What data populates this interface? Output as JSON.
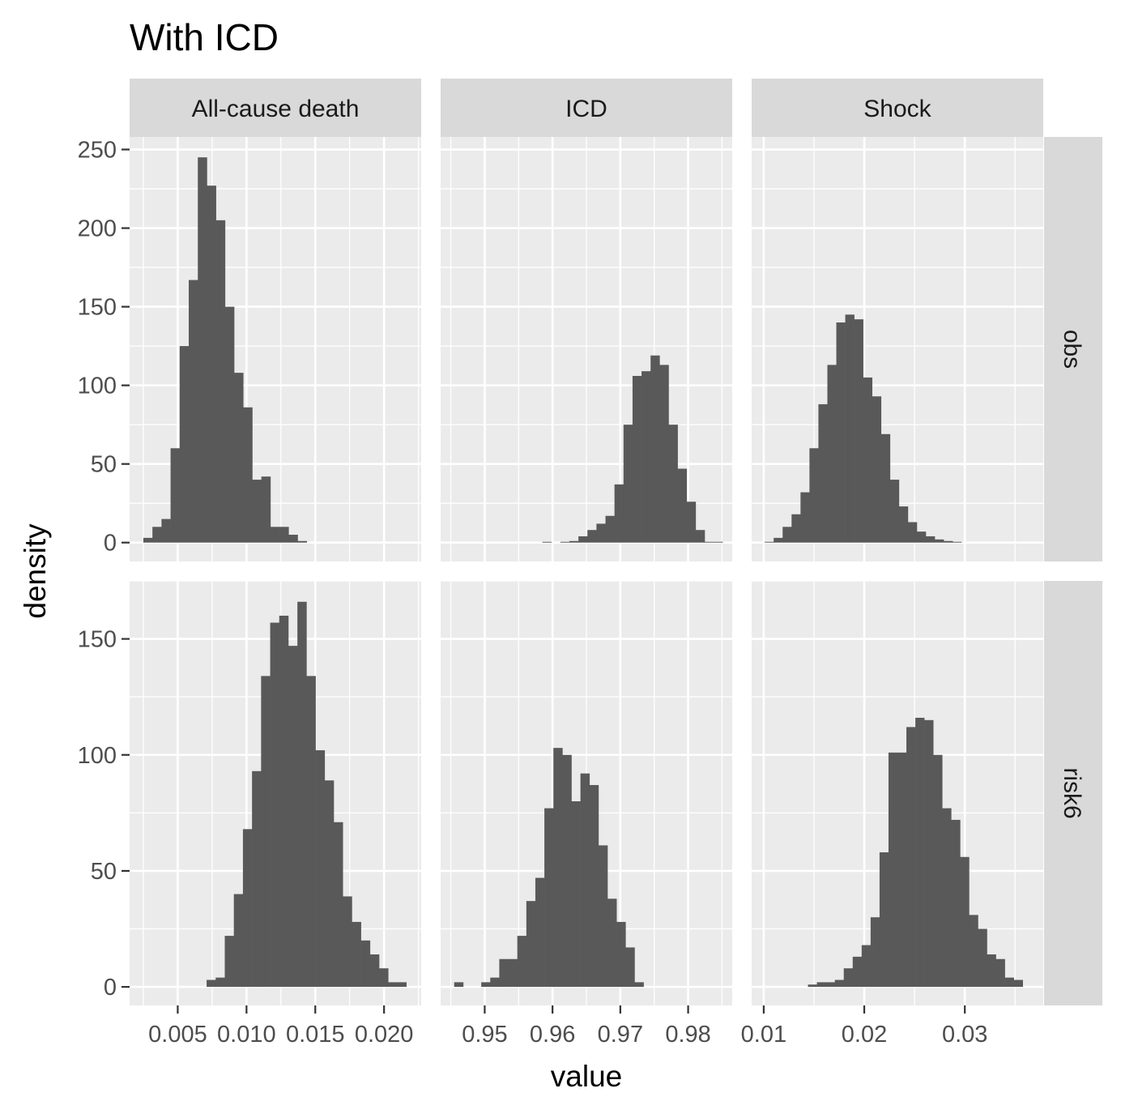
{
  "title": "With ICD",
  "xlabel": "value",
  "ylabel": "density",
  "colors": {
    "bar": "#595959",
    "panel": "#ebebeb",
    "grid": "#ffffff",
    "strip": "#d9d9d9",
    "tick": "#333333"
  },
  "chart_data": [
    {
      "type": "bar",
      "facet_col": "All-cause death",
      "facet_row": "obs",
      "xlim": [
        0.0015,
        0.0227
      ],
      "ylim": [
        -12,
        258
      ],
      "xticks": [
        0.005,
        0.01,
        0.015,
        0.02
      ],
      "xtick_labels": [
        "0.005",
        "0.010",
        "0.015",
        "0.020"
      ],
      "yticks": [
        0,
        50,
        100,
        150,
        200,
        250
      ],
      "ytick_labels": [
        "0",
        "50",
        "100",
        "150",
        "200",
        "250"
      ],
      "bin_start": 0.0025,
      "bin_width": 0.00066,
      "values": [
        3,
        10,
        15,
        60,
        125,
        167,
        245,
        227,
        205,
        150,
        108,
        86,
        40,
        42,
        10,
        10,
        5,
        1
      ]
    },
    {
      "type": "bar",
      "facet_col": "ICD",
      "facet_row": "obs",
      "xlim": [
        0.9435,
        0.9865
      ],
      "ylim": [
        -12,
        258
      ],
      "xticks": [
        0.95,
        0.96,
        0.97,
        0.98
      ],
      "xtick_labels": [
        "0.95",
        "0.96",
        "0.97",
        "0.98"
      ],
      "yticks": [
        0,
        50,
        100,
        150,
        200,
        250
      ],
      "bin_start": 0.9585,
      "bin_width": 0.00133,
      "values": [
        0.5,
        0,
        0.5,
        1,
        4,
        8,
        12,
        17,
        37,
        75,
        106,
        109,
        119,
        113,
        75,
        47,
        26,
        8,
        0.5,
        0.5
      ]
    },
    {
      "type": "bar",
      "facet_col": "Shock",
      "facet_row": "obs",
      "xlim": [
        0.0088,
        0.0378
      ],
      "ylim": [
        -12,
        258
      ],
      "xticks": [
        0.01,
        0.02,
        0.03
      ],
      "xtick_labels": [
        "0.01",
        "0.02",
        "0.03"
      ],
      "yticks": [
        0,
        50,
        100,
        150,
        200,
        250
      ],
      "bin_start": 0.0101,
      "bin_width": 0.00089,
      "values": [
        0.5,
        3,
        10,
        18,
        32,
        60,
        88,
        113,
        140,
        145,
        142,
        105,
        93,
        69,
        40,
        23,
        13,
        7,
        4,
        2,
        1,
        0.5
      ]
    },
    {
      "type": "bar",
      "facet_col": "All-cause death",
      "facet_row": "risk6",
      "xlim": [
        0.0015,
        0.0227
      ],
      "ylim": [
        -8,
        175
      ],
      "xticks": [
        0.005,
        0.01,
        0.015,
        0.02
      ],
      "xtick_labels": [
        "0.005",
        "0.010",
        "0.015",
        "0.020"
      ],
      "yticks": [
        0,
        50,
        100,
        150
      ],
      "ytick_labels": [
        "0",
        "50",
        "100",
        "150"
      ],
      "bin_start": 0.0071,
      "bin_width": 0.00066,
      "values": [
        3,
        4,
        22,
        40,
        68,
        93,
        134,
        157,
        160,
        147,
        166,
        134,
        102,
        89,
        71,
        39,
        28,
        20,
        14,
        8,
        2,
        2
      ]
    },
    {
      "type": "bar",
      "facet_col": "ICD",
      "facet_row": "risk6",
      "xlim": [
        0.9435,
        0.9865
      ],
      "ylim": [
        -8,
        175
      ],
      "xticks": [
        0.95,
        0.96,
        0.97,
        0.98
      ],
      "xtick_labels": [
        "0.95",
        "0.96",
        "0.97",
        "0.98"
      ],
      "yticks": [
        0,
        50,
        100,
        150
      ],
      "bin_start": 0.9455,
      "bin_width": 0.00133,
      "values": [
        2,
        0,
        0,
        2,
        4,
        12,
        12,
        22,
        37,
        47,
        77,
        103,
        100,
        80,
        92,
        87,
        61,
        38,
        28,
        17,
        2,
        0
      ]
    },
    {
      "type": "bar",
      "facet_col": "Shock",
      "facet_row": "risk6",
      "xlim": [
        0.0088,
        0.0378
      ],
      "ylim": [
        -8,
        175
      ],
      "xticks": [
        0.01,
        0.02,
        0.03
      ],
      "xtick_labels": [
        "0.01",
        "0.02",
        "0.03"
      ],
      "yticks": [
        0,
        50,
        100,
        150
      ],
      "bin_start": 0.0144,
      "bin_width": 0.00089,
      "values": [
        1,
        2,
        2,
        3,
        8,
        13,
        18,
        30,
        58,
        101,
        101,
        112,
        116,
        115,
        100,
        77,
        72,
        56,
        31,
        25,
        14,
        12,
        4,
        3
      ]
    }
  ]
}
